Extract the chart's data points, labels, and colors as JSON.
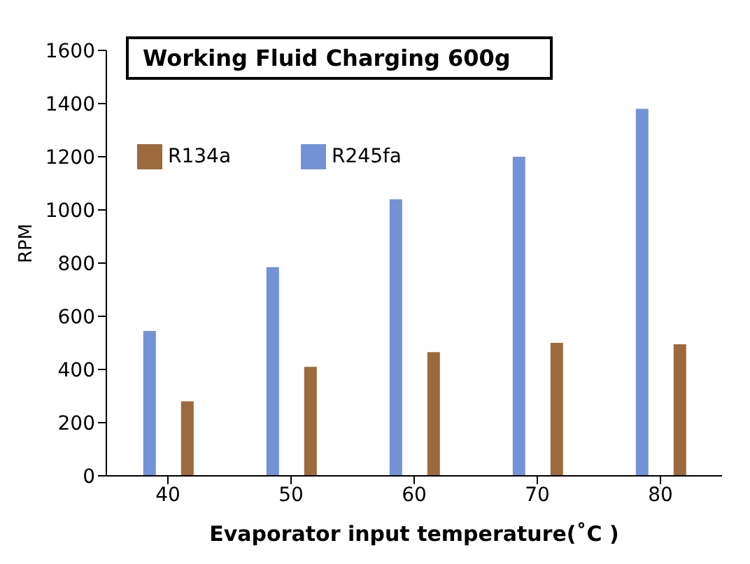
{
  "chart_data": {
    "type": "bar",
    "title": "Working Fluid Charging 600g",
    "xlabel": "Evaporator input temperature(˚C )",
    "ylabel": "RPM",
    "categories": [
      "40",
      "50",
      "60",
      "70",
      "80"
    ],
    "series": [
      {
        "name": "R245fa",
        "color": "#7393d6",
        "values": [
          545,
          785,
          1040,
          1200,
          1380
        ]
      },
      {
        "name": "R134a",
        "color": "#9c6a3c",
        "values": [
          280,
          410,
          465,
          500,
          495
        ]
      }
    ],
    "ylim": [
      0,
      1600
    ],
    "yticks": [
      0,
      200,
      400,
      600,
      800,
      1000,
      1200,
      1400,
      1600
    ],
    "legend": "top left"
  }
}
